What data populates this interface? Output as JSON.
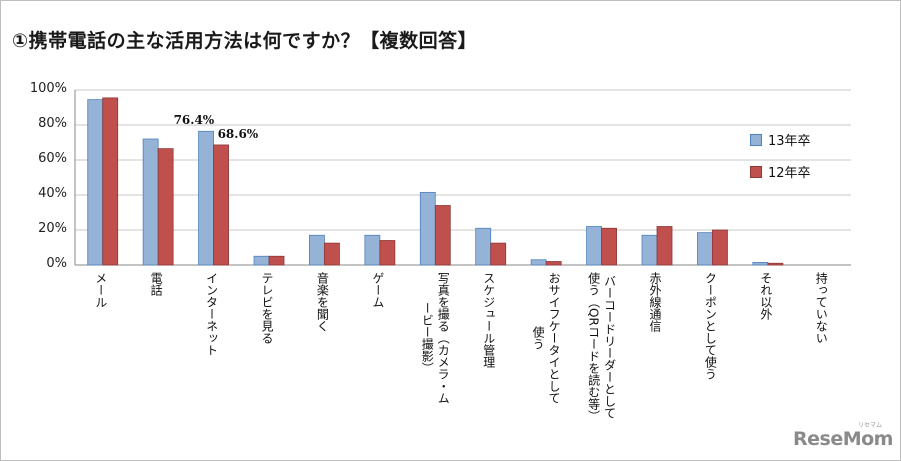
{
  "title": "①携帯電話の主な活用方法は何ですか？【複数回答】",
  "chart_data": {
    "type": "bar",
    "title": "①携帯電話の主な活用方法は何ですか？【複数回答】",
    "yticks": [
      "100%",
      "80%",
      "60%",
      "40%",
      "20%",
      "0%"
    ],
    "ylim": [
      0,
      100
    ],
    "grid": true,
    "legend_position": "right",
    "categories": [
      {
        "lines": [
          "メール"
        ]
      },
      {
        "lines": [
          "電話"
        ]
      },
      {
        "lines": [
          "インターネット"
        ]
      },
      {
        "lines": [
          "テレビを見る"
        ]
      },
      {
        "lines": [
          "音楽を聞く"
        ]
      },
      {
        "lines": [
          "ゲーム"
        ]
      },
      {
        "lines": [
          "写真を撮る（カメラ・ム",
          "ービー撮影）"
        ]
      },
      {
        "lines": [
          "スケジュール管理"
        ]
      },
      {
        "lines": [
          "おサイフケータイとして",
          "使う"
        ]
      },
      {
        "lines": [
          "バーコードリーダーとして",
          "使う（QRコードを読む等）"
        ]
      },
      {
        "lines": [
          "赤外線通信"
        ]
      },
      {
        "lines": [
          "クーポンとして使う"
        ]
      },
      {
        "lines": [
          "それ以外"
        ]
      },
      {
        "lines": [
          "持っていない"
        ]
      }
    ],
    "series": [
      {
        "name": "13年卒",
        "color": "#95b3d7",
        "stroke": "#4f81bd",
        "values": [
          94.5,
          72,
          76.4,
          5,
          17,
          17,
          41.5,
          21,
          3,
          22,
          17,
          18.5,
          1.5,
          0
        ]
      },
      {
        "name": "12年卒",
        "color": "#c0504d",
        "stroke": "#8c3836",
        "values": [
          95.5,
          66.5,
          68.6,
          5,
          12.5,
          14,
          34,
          12.5,
          2,
          21,
          22,
          20,
          1,
          0
        ]
      }
    ],
    "annotations": [
      {
        "text": "76.4%",
        "category_index": 2,
        "series_index": 0
      },
      {
        "text": "68.6%",
        "category_index": 2,
        "series_index": 1
      }
    ]
  },
  "branding": {
    "logo": "ReseMom",
    "logo_small": "リセマム"
  }
}
